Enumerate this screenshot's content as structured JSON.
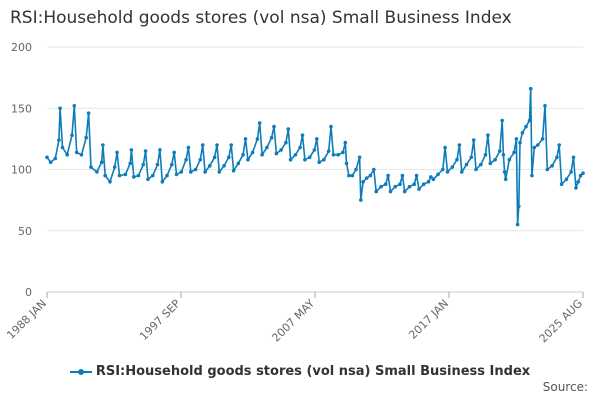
{
  "chart_data": {
    "type": "line",
    "title": "RSI:Household goods stores (vol nsa) Small Business Index",
    "ylim": [
      0,
      200
    ],
    "yticks": [
      0,
      50,
      100,
      150,
      200
    ],
    "xlim": [
      "1988-01",
      "2025-08"
    ],
    "xtick_labels": [
      "1988 JAN",
      "1997 SEP",
      "2007 MAY",
      "2017 JAN",
      "2025 AUG"
    ],
    "grid": "horizontal",
    "legend_position": "bottom",
    "series": [
      {
        "name": "RSI:Household goods stores (vol nsa) Small Business Index",
        "color": "#0d7cba",
        "points": [
          [
            "1988-01",
            110
          ],
          [
            "1988-04",
            106
          ],
          [
            "1988-08",
            109
          ],
          [
            "1988-11",
            124
          ],
          [
            "1988-12",
            150
          ],
          [
            "1989-02",
            118
          ],
          [
            "1989-06",
            112
          ],
          [
            "1989-10",
            128
          ],
          [
            "1989-12",
            152
          ],
          [
            "1990-02",
            114
          ],
          [
            "1990-06",
            112
          ],
          [
            "1990-10",
            126
          ],
          [
            "1990-12",
            146
          ],
          [
            "1991-02",
            102
          ],
          [
            "1991-07",
            98
          ],
          [
            "1991-11",
            106
          ],
          [
            "1991-12",
            120
          ],
          [
            "1992-02",
            95
          ],
          [
            "1992-06",
            90
          ],
          [
            "1992-10",
            102
          ],
          [
            "1992-12",
            114
          ],
          [
            "1993-02",
            95
          ],
          [
            "1993-07",
            96
          ],
          [
            "1993-11",
            105
          ],
          [
            "1993-12",
            116
          ],
          [
            "1994-02",
            94
          ],
          [
            "1994-06",
            95
          ],
          [
            "1994-10",
            104
          ],
          [
            "1994-12",
            115
          ],
          [
            "1995-02",
            92
          ],
          [
            "1995-06",
            95
          ],
          [
            "1995-10",
            104
          ],
          [
            "1995-12",
            116
          ],
          [
            "1996-02",
            90
          ],
          [
            "1996-06",
            95
          ],
          [
            "1996-10",
            104
          ],
          [
            "1996-12",
            114
          ],
          [
            "1997-02",
            96
          ],
          [
            "1997-06",
            98
          ],
          [
            "1997-10",
            108
          ],
          [
            "1997-12",
            118
          ],
          [
            "1998-02",
            98
          ],
          [
            "1998-06",
            100
          ],
          [
            "1998-10",
            108
          ],
          [
            "1998-12",
            120
          ],
          [
            "1999-02",
            98
          ],
          [
            "1999-06",
            103
          ],
          [
            "1999-10",
            110
          ],
          [
            "1999-12",
            120
          ],
          [
            "2000-02",
            98
          ],
          [
            "2000-06",
            103
          ],
          [
            "2000-10",
            110
          ],
          [
            "2000-12",
            120
          ],
          [
            "2001-02",
            99
          ],
          [
            "2001-06",
            105
          ],
          [
            "2001-10",
            112
          ],
          [
            "2001-12",
            125
          ],
          [
            "2002-02",
            108
          ],
          [
            "2002-06",
            114
          ],
          [
            "2002-10",
            125
          ],
          [
            "2002-12",
            138
          ],
          [
            "2003-02",
            112
          ],
          [
            "2003-06",
            118
          ],
          [
            "2003-10",
            126
          ],
          [
            "2003-12",
            135
          ],
          [
            "2004-02",
            113
          ],
          [
            "2004-06",
            116
          ],
          [
            "2004-10",
            122
          ],
          [
            "2004-12",
            133
          ],
          [
            "2005-02",
            108
          ],
          [
            "2005-06",
            112
          ],
          [
            "2005-10",
            118
          ],
          [
            "2005-12",
            128
          ],
          [
            "2006-02",
            108
          ],
          [
            "2006-06",
            110
          ],
          [
            "2006-10",
            116
          ],
          [
            "2006-12",
            125
          ],
          [
            "2007-02",
            106
          ],
          [
            "2007-06",
            108
          ],
          [
            "2007-10",
            115
          ],
          [
            "2007-12",
            135
          ],
          [
            "2008-02",
            112
          ],
          [
            "2008-06",
            112
          ],
          [
            "2008-10",
            114
          ],
          [
            "2008-12",
            122
          ],
          [
            "2009-01",
            105
          ],
          [
            "2009-03",
            95
          ],
          [
            "2009-06",
            95
          ],
          [
            "2009-09",
            100
          ],
          [
            "2009-12",
            110
          ],
          [
            "2010-01",
            75
          ],
          [
            "2010-03",
            90
          ],
          [
            "2010-06",
            93
          ],
          [
            "2010-09",
            95
          ],
          [
            "2010-12",
            100
          ],
          [
            "2011-02",
            82
          ],
          [
            "2011-06",
            86
          ],
          [
            "2011-10",
            88
          ],
          [
            "2011-12",
            95
          ],
          [
            "2012-02",
            82
          ],
          [
            "2012-06",
            86
          ],
          [
            "2012-10",
            88
          ],
          [
            "2012-12",
            95
          ],
          [
            "2013-02",
            82
          ],
          [
            "2013-06",
            86
          ],
          [
            "2013-10",
            88
          ],
          [
            "2013-12",
            95
          ],
          [
            "2014-02",
            84
          ],
          [
            "2014-06",
            88
          ],
          [
            "2014-10",
            90
          ],
          [
            "2014-12",
            94
          ],
          [
            "2015-02",
            92
          ],
          [
            "2015-06",
            96
          ],
          [
            "2015-10",
            100
          ],
          [
            "2015-12",
            118
          ],
          [
            "2016-02",
            98
          ],
          [
            "2016-06",
            102
          ],
          [
            "2016-10",
            108
          ],
          [
            "2016-12",
            120
          ],
          [
            "2017-02",
            98
          ],
          [
            "2017-06",
            104
          ],
          [
            "2017-10",
            110
          ],
          [
            "2017-12",
            124
          ],
          [
            "2018-02",
            100
          ],
          [
            "2018-06",
            104
          ],
          [
            "2018-10",
            112
          ],
          [
            "2018-12",
            128
          ],
          [
            "2019-02",
            105
          ],
          [
            "2019-06",
            108
          ],
          [
            "2019-10",
            115
          ],
          [
            "2019-12",
            140
          ],
          [
            "2020-01",
            112
          ],
          [
            "2020-02",
            98
          ],
          [
            "2020-03",
            92
          ],
          [
            "2020-06",
            108
          ],
          [
            "2020-10",
            114
          ],
          [
            "2020-12",
            125
          ],
          [
            "2021-01",
            55
          ],
          [
            "2021-02",
            70
          ],
          [
            "2021-03",
            122
          ],
          [
            "2021-05",
            130
          ],
          [
            "2021-08",
            135
          ],
          [
            "2021-11",
            140
          ],
          [
            "2021-12",
            166
          ],
          [
            "2022-01",
            95
          ],
          [
            "2022-03",
            118
          ],
          [
            "2022-06",
            120
          ],
          [
            "2022-10",
            125
          ],
          [
            "2022-12",
            152
          ],
          [
            "2023-02",
            100
          ],
          [
            "2023-06",
            103
          ],
          [
            "2023-10",
            110
          ],
          [
            "2023-12",
            120
          ],
          [
            "2024-02",
            88
          ],
          [
            "2024-06",
            92
          ],
          [
            "2024-10",
            98
          ],
          [
            "2024-12",
            110
          ],
          [
            "2025-02",
            85
          ],
          [
            "2025-04",
            90
          ],
          [
            "2025-06",
            95
          ],
          [
            "2025-08",
            97
          ]
        ]
      }
    ]
  },
  "legend": {
    "label": "RSI:Household goods stores (vol nsa) Small Business Index"
  },
  "source": {
    "label": "Source:"
  }
}
